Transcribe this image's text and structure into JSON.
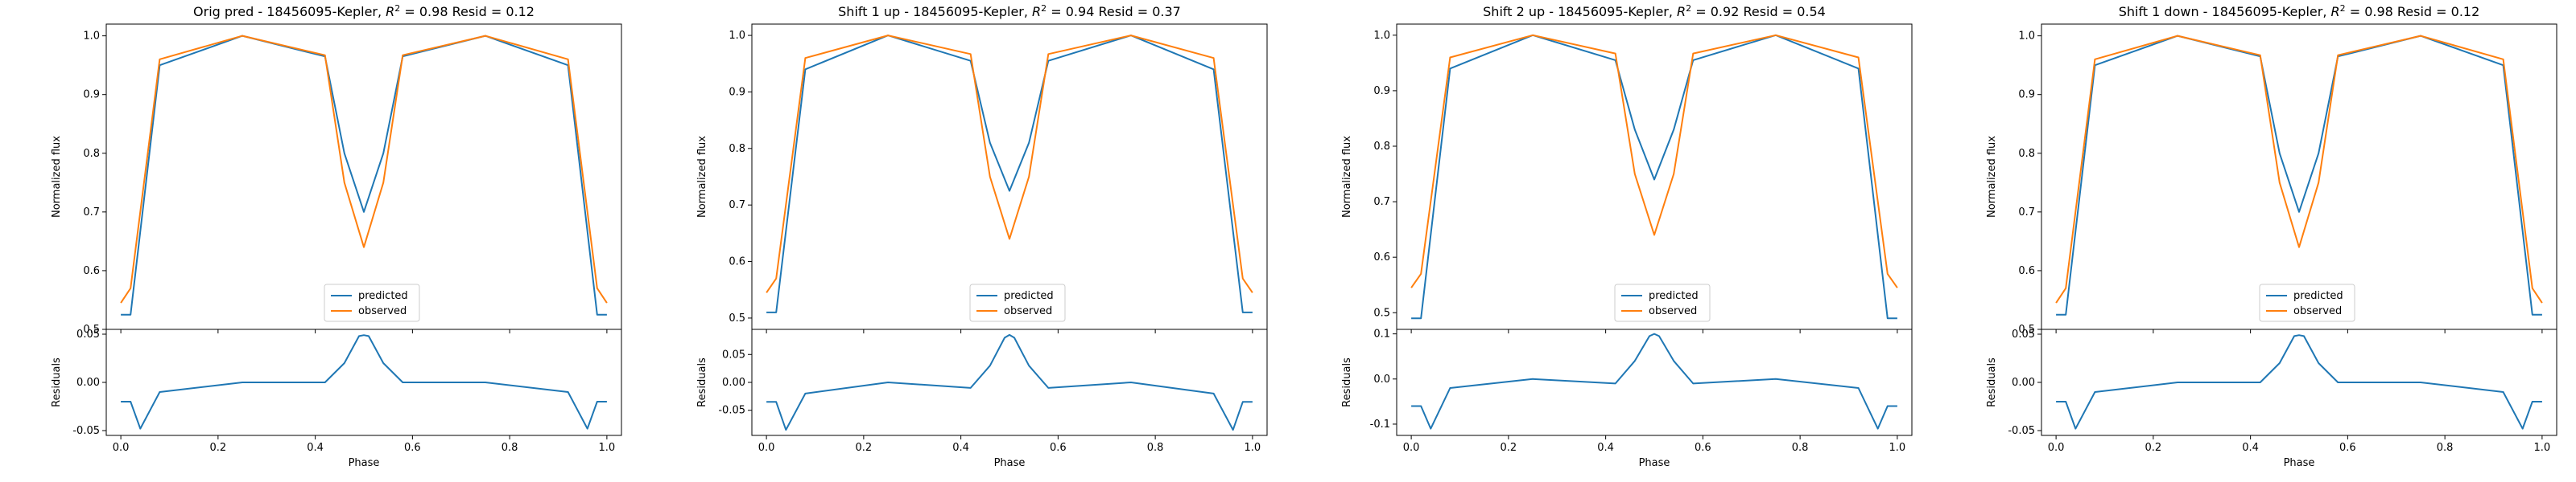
{
  "figure": {
    "panels": [
      {
        "title_prefix": "Orig pred - 18456095-Kepler, ",
        "r2": "0.98",
        "resid": "0.12"
      },
      {
        "title_prefix": "Shift 1 up - 18456095-Kepler, ",
        "r2": "0.94",
        "resid": "0.37"
      },
      {
        "title_prefix": "Shift 2 up - 18456095-Kepler, ",
        "r2": "0.92",
        "resid": "0.54"
      },
      {
        "title_prefix": "Shift 1 down - 18456095-Kepler, ",
        "r2": "0.98",
        "resid": "0.12"
      }
    ],
    "title_r2_symbol": "R",
    "title_r2_exp": "2",
    "title_eq": " = ",
    "title_resid_label": " Resid = ",
    "colors": {
      "predicted": "#1f77b4",
      "observed": "#ff7f0e"
    },
    "legend": [
      "predicted",
      "observed"
    ],
    "ylabel_top": "Normalized flux",
    "ylabel_bottom": "Residuals",
    "xlabel": "Phase"
  },
  "chart_data": [
    {
      "type": "line",
      "title": "Orig pred - 18456095-Kepler, R^2 = 0.98 Resid = 0.12",
      "xlabel": "Phase",
      "ylabel": "Normalized flux",
      "xlim": [
        -0.03,
        1.03
      ],
      "ylim": [
        0.5,
        1.02
      ],
      "yticks": [
        0.5,
        0.6,
        0.7,
        0.8,
        0.9,
        1.0
      ],
      "xticks": [
        0.0,
        0.2,
        0.4,
        0.6,
        0.8,
        1.0
      ],
      "legend_position": "lower-center",
      "x": [
        0.0,
        0.02,
        0.08,
        0.25,
        0.42,
        0.46,
        0.5,
        0.54,
        0.58,
        0.75,
        0.92,
        0.98,
        1.0
      ],
      "series": [
        {
          "name": "predicted",
          "values": [
            0.525,
            0.525,
            0.95,
            1.0,
            0.965,
            0.8,
            0.7,
            0.8,
            0.965,
            1.0,
            0.95,
            0.525,
            0.525
          ]
        },
        {
          "name": "observed",
          "values": [
            0.545,
            0.57,
            0.96,
            1.0,
            0.967,
            0.75,
            0.64,
            0.75,
            0.967,
            1.0,
            0.96,
            0.57,
            0.545
          ]
        }
      ],
      "residuals": {
        "ylabel": "Residuals",
        "ylim": [
          -0.055,
          0.055
        ],
        "yticks": [
          -0.05,
          0.0,
          0.05
        ],
        "x": [
          0.0,
          0.02,
          0.04,
          0.08,
          0.25,
          0.42,
          0.46,
          0.49,
          0.5,
          0.51,
          0.54,
          0.58,
          0.75,
          0.92,
          0.96,
          0.98,
          1.0
        ],
        "values": [
          -0.02,
          -0.02,
          -0.048,
          -0.01,
          0.0,
          0.0,
          0.02,
          0.048,
          0.049,
          0.048,
          0.02,
          0.0,
          0.0,
          -0.01,
          -0.048,
          -0.02,
          -0.02
        ]
      }
    },
    {
      "type": "line",
      "title": "Shift 1 up - 18456095-Kepler, R^2 = 0.94 Resid = 0.37",
      "xlabel": "Phase",
      "ylabel": "Normalized flux",
      "xlim": [
        -0.03,
        1.03
      ],
      "ylim": [
        0.48,
        1.02
      ],
      "yticks": [
        0.5,
        0.6,
        0.7,
        0.8,
        0.9,
        1.0
      ],
      "xticks": [
        0.0,
        0.2,
        0.4,
        0.6,
        0.8,
        1.0
      ],
      "legend_position": "lower-center",
      "x": [
        0.0,
        0.02,
        0.08,
        0.25,
        0.42,
        0.46,
        0.5,
        0.54,
        0.58,
        0.75,
        0.92,
        0.98,
        1.0
      ],
      "series": [
        {
          "name": "predicted",
          "values": [
            0.51,
            0.51,
            0.94,
            1.0,
            0.955,
            0.81,
            0.725,
            0.81,
            0.955,
            1.0,
            0.94,
            0.51,
            0.51
          ]
        },
        {
          "name": "observed",
          "values": [
            0.545,
            0.57,
            0.96,
            1.0,
            0.967,
            0.75,
            0.64,
            0.75,
            0.967,
            1.0,
            0.96,
            0.57,
            0.545
          ]
        }
      ],
      "residuals": {
        "ylabel": "Residuals",
        "ylim": [
          -0.095,
          0.095
        ],
        "yticks": [
          -0.05,
          0.0,
          0.05
        ],
        "x": [
          0.0,
          0.02,
          0.04,
          0.08,
          0.25,
          0.42,
          0.46,
          0.49,
          0.5,
          0.51,
          0.54,
          0.58,
          0.75,
          0.92,
          0.96,
          0.98,
          1.0
        ],
        "values": [
          -0.035,
          -0.035,
          -0.085,
          -0.02,
          0.0,
          -0.01,
          0.03,
          0.08,
          0.085,
          0.08,
          0.03,
          -0.01,
          0.0,
          -0.02,
          -0.085,
          -0.035,
          -0.035
        ]
      }
    },
    {
      "type": "line",
      "title": "Shift 2 up - 18456095-Kepler, R^2 = 0.92 Resid = 0.54",
      "xlabel": "Phase",
      "ylabel": "Normalized flux",
      "xlim": [
        -0.03,
        1.03
      ],
      "ylim": [
        0.47,
        1.02
      ],
      "yticks": [
        0.5,
        0.6,
        0.7,
        0.8,
        0.9,
        1.0
      ],
      "xticks": [
        0.0,
        0.2,
        0.4,
        0.6,
        0.8,
        1.0
      ],
      "legend_position": "lower-center",
      "x": [
        0.0,
        0.02,
        0.08,
        0.25,
        0.42,
        0.46,
        0.5,
        0.54,
        0.58,
        0.75,
        0.92,
        0.98,
        1.0
      ],
      "series": [
        {
          "name": "predicted",
          "values": [
            0.49,
            0.49,
            0.94,
            1.0,
            0.955,
            0.83,
            0.74,
            0.83,
            0.955,
            1.0,
            0.94,
            0.49,
            0.49
          ]
        },
        {
          "name": "observed",
          "values": [
            0.545,
            0.57,
            0.96,
            1.0,
            0.967,
            0.75,
            0.64,
            0.75,
            0.967,
            1.0,
            0.96,
            0.57,
            0.545
          ]
        }
      ],
      "residuals": {
        "ylabel": "Residuals",
        "ylim": [
          -0.125,
          0.11
        ],
        "yticks": [
          -0.1,
          0.0,
          0.1
        ],
        "x": [
          0.0,
          0.02,
          0.04,
          0.08,
          0.25,
          0.42,
          0.46,
          0.49,
          0.5,
          0.51,
          0.54,
          0.58,
          0.75,
          0.92,
          0.96,
          0.98,
          1.0
        ],
        "values": [
          -0.06,
          -0.06,
          -0.11,
          -0.02,
          0.0,
          -0.01,
          0.04,
          0.095,
          0.1,
          0.095,
          0.04,
          -0.01,
          0.0,
          -0.02,
          -0.11,
          -0.06,
          -0.06
        ]
      }
    },
    {
      "type": "line",
      "title": "Shift 1 down - 18456095-Kepler, R^2 = 0.98 Resid = 0.12",
      "xlabel": "Phase",
      "ylabel": "Normalized flux",
      "xlim": [
        -0.03,
        1.03
      ],
      "ylim": [
        0.5,
        1.02
      ],
      "yticks": [
        0.5,
        0.6,
        0.7,
        0.8,
        0.9,
        1.0
      ],
      "xticks": [
        0.0,
        0.2,
        0.4,
        0.6,
        0.8,
        1.0
      ],
      "legend_position": "lower-center",
      "x": [
        0.0,
        0.02,
        0.08,
        0.25,
        0.42,
        0.46,
        0.5,
        0.54,
        0.58,
        0.75,
        0.92,
        0.98,
        1.0
      ],
      "series": [
        {
          "name": "predicted",
          "values": [
            0.525,
            0.525,
            0.95,
            1.0,
            0.965,
            0.8,
            0.7,
            0.8,
            0.965,
            1.0,
            0.95,
            0.525,
            0.525
          ]
        },
        {
          "name": "observed",
          "values": [
            0.545,
            0.57,
            0.96,
            1.0,
            0.967,
            0.75,
            0.64,
            0.75,
            0.967,
            1.0,
            0.96,
            0.57,
            0.545
          ]
        }
      ],
      "residuals": {
        "ylabel": "Residuals",
        "ylim": [
          -0.055,
          0.055
        ],
        "yticks": [
          -0.05,
          0.0,
          0.05
        ],
        "x": [
          0.0,
          0.02,
          0.04,
          0.08,
          0.25,
          0.42,
          0.46,
          0.49,
          0.5,
          0.51,
          0.54,
          0.58,
          0.75,
          0.92,
          0.96,
          0.98,
          1.0
        ],
        "values": [
          -0.02,
          -0.02,
          -0.048,
          -0.01,
          0.0,
          0.0,
          0.02,
          0.048,
          0.049,
          0.048,
          0.02,
          0.0,
          0.0,
          -0.01,
          -0.048,
          -0.02,
          -0.02
        ]
      }
    }
  ]
}
